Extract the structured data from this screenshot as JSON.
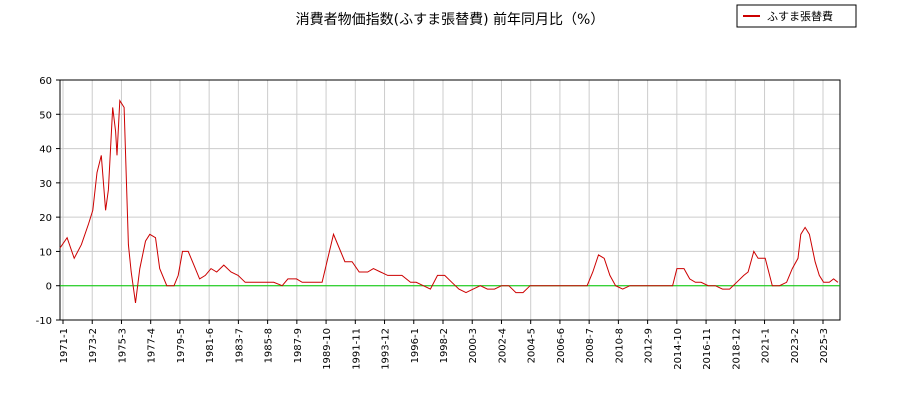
{
  "chart_data": {
    "type": "line",
    "title": "消費者物価指数(ふすま張替費) 前年同月比（%）",
    "xlabel": "",
    "ylabel": "",
    "ylim": [
      -10,
      60
    ],
    "yticks": [
      -10,
      0,
      10,
      20,
      30,
      40,
      50,
      60
    ],
    "grid": true,
    "legend": {
      "placement": "top-right",
      "entries": [
        "ふすま張替費"
      ]
    },
    "x_tick_labels": [
      "1971-1",
      "1973-2",
      "1975-3",
      "1977-4",
      "1979-5",
      "1981-6",
      "1983-7",
      "1985-8",
      "1987-9",
      "1989-10",
      "1991-11",
      "1993-12",
      "1996-1",
      "1998-2",
      "2000-3",
      "2002-4",
      "2004-5",
      "2006-6",
      "2008-7",
      "2010-8",
      "2012-9",
      "2014-10",
      "2016-11",
      "2018-12",
      "2021-1",
      "2023-2",
      "2025-3"
    ],
    "zero_line_color": "#00cc00",
    "series": [
      {
        "name": "ふすま張替費",
        "color": "#cc0000",
        "x": [
          1971.0,
          1971.5,
          1972.0,
          1972.5,
          1973.0,
          1973.3,
          1973.6,
          1973.9,
          1974.2,
          1974.4,
          1974.7,
          1974.9,
          1975.0,
          1975.2,
          1975.5,
          1975.8,
          1976.0,
          1976.3,
          1976.6,
          1977.0,
          1977.3,
          1977.7,
          1978.0,
          1978.5,
          1979.0,
          1979.3,
          1979.6,
          1980.0,
          1980.4,
          1980.8,
          1981.2,
          1981.6,
          1982.0,
          1982.5,
          1983.0,
          1983.5,
          1984.0,
          1985.0,
          1986.0,
          1986.6,
          1987.0,
          1987.6,
          1988.0,
          1988.6,
          1989.0,
          1989.4,
          1989.8,
          1990.2,
          1990.6,
          1991.0,
          1991.5,
          1992.0,
          1992.6,
          1993.0,
          1993.5,
          1994.0,
          1994.6,
          1995.0,
          1995.6,
          1996.0,
          1996.5,
          1997.0,
          1997.5,
          1998.0,
          1998.5,
          1999.0,
          1999.5,
          2000.0,
          2000.5,
          2001.0,
          2001.5,
          2002.0,
          2002.5,
          2003.0,
          2003.5,
          2004.0,
          2005.0,
          2006.0,
          2007.0,
          2007.5,
          2008.0,
          2008.4,
          2008.8,
          2009.2,
          2009.6,
          2010.0,
          2010.5,
          2011.0,
          2012.0,
          2013.0,
          2014.0,
          2014.3,
          2014.8,
          2015.2,
          2015.6,
          2016.0,
          2016.5,
          2017.0,
          2017.5,
          2018.0,
          2018.5,
          2019.0,
          2019.3,
          2019.7,
          2020.0,
          2020.5,
          2021.0,
          2021.5,
          2022.0,
          2022.4,
          2022.8,
          2023.0,
          2023.3,
          2023.6,
          2024.0,
          2024.3,
          2024.6,
          2025.0,
          2025.3,
          2025.6
        ],
        "values": [
          11,
          14,
          8,
          12,
          18,
          22,
          33,
          38,
          22,
          28,
          52,
          45,
          38,
          54,
          52,
          12,
          4,
          -5,
          5,
          13,
          15,
          14,
          5,
          0,
          0,
          3,
          10,
          10,
          6,
          2,
          3,
          5,
          4,
          6,
          4,
          3,
          1,
          1,
          1,
          0,
          2,
          2,
          1,
          1,
          1,
          1,
          8,
          15,
          11,
          7,
          7,
          4,
          4,
          5,
          4,
          3,
          3,
          3,
          1,
          1,
          0,
          -1,
          3,
          3,
          1,
          -1,
          -2,
          -1,
          0,
          -1,
          -1,
          0,
          0,
          -2,
          -2,
          0,
          0,
          0,
          0,
          0,
          0,
          4,
          9,
          8,
          3,
          0,
          -1,
          0,
          0,
          0,
          0,
          5,
          5,
          2,
          1,
          1,
          0,
          0,
          -1,
          -1,
          1,
          3,
          4,
          10,
          8,
          8,
          0,
          0,
          1,
          5,
          8,
          15,
          17,
          15,
          7,
          3,
          1,
          1,
          2,
          1
        ]
      }
    ]
  }
}
